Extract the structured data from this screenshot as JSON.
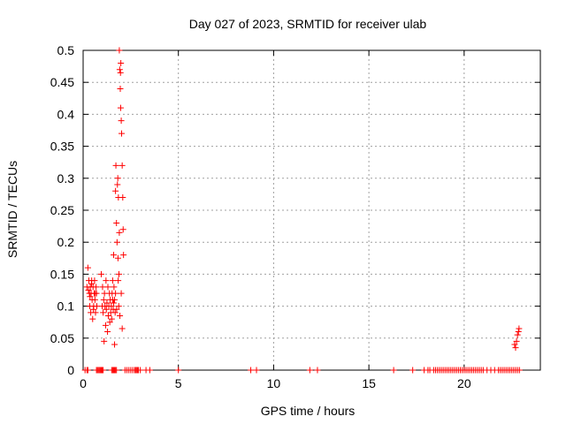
{
  "chart_data": {
    "type": "scatter",
    "title": "Day 027 of 2023, SRMTID for receiver ulab",
    "xlabel": "GPS time / hours",
    "ylabel": "SRMTID / TECUs",
    "xlim": [
      0,
      24
    ],
    "ylim": [
      0,
      0.5
    ],
    "xticks": [
      0,
      5,
      10,
      15,
      20
    ],
    "yticks": [
      0,
      0.05,
      0.1,
      0.15,
      0.2,
      0.25,
      0.3,
      0.35,
      0.4,
      0.45,
      0.5
    ],
    "xtick_labels": [
      "0",
      "5",
      "10",
      "15",
      "20"
    ],
    "ytick_labels": [
      "0",
      "0.05",
      "0.1",
      "0.15",
      "0.2",
      "0.25",
      "0.3",
      "0.35",
      "0.4",
      "0.45",
      "0.5"
    ],
    "grid": true,
    "marker": "plus",
    "color": "#ff0000",
    "series": [
      {
        "points": [
          [
            0.2,
            0.13
          ],
          [
            0.25,
            0.16
          ],
          [
            0.3,
            0.14
          ],
          [
            0.33,
            0.12
          ],
          [
            0.35,
            0.1
          ],
          [
            0.38,
            0.13
          ],
          [
            0.4,
            0.09
          ],
          [
            0.42,
            0.12
          ],
          [
            0.45,
            0.14
          ],
          [
            0.47,
            0.11
          ],
          [
            0.5,
            0.08
          ],
          [
            0.52,
            0.13
          ],
          [
            0.55,
            0.1
          ],
          [
            0.58,
            0.12
          ],
          [
            0.6,
            0.14
          ],
          [
            0.62,
            0.11
          ],
          [
            0.65,
            0.09
          ],
          [
            0.68,
            0.13
          ],
          [
            0.7,
            0.12
          ],
          [
            0.72,
            0.1
          ],
          [
            0.28,
            0.125
          ],
          [
            0.36,
            0.115
          ],
          [
            0.44,
            0.135
          ],
          [
            0.54,
            0.095
          ],
          [
            0.64,
            0.12
          ],
          [
            0.95,
            0.15
          ],
          [
            1.0,
            0.1
          ],
          [
            1.02,
            0.13
          ],
          [
            1.05,
            0.09
          ],
          [
            1.08,
            0.11
          ],
          [
            1.1,
            0.045
          ],
          [
            1.12,
            0.12
          ],
          [
            1.15,
            0.1
          ],
          [
            1.18,
            0.07
          ],
          [
            1.2,
            0.14
          ],
          [
            1.22,
            0.095
          ],
          [
            1.25,
            0.105
          ],
          [
            1.28,
            0.06
          ],
          [
            1.3,
            0.13
          ],
          [
            1.32,
            0.085
          ],
          [
            1.35,
            0.1
          ],
          [
            1.38,
            0.12
          ],
          [
            1.4,
            0.075
          ],
          [
            1.42,
            0.11
          ],
          [
            1.45,
            0.09
          ],
          [
            1.48,
            0.1
          ],
          [
            1.5,
            0.08
          ],
          [
            1.52,
            0.12
          ],
          [
            1.55,
            0.11
          ],
          [
            1.58,
            0.095
          ],
          [
            1.6,
            0.105
          ],
          [
            1.62,
            0.13
          ],
          [
            1.65,
            0.04
          ],
          [
            1.68,
            0.09
          ],
          [
            1.7,
            0.12
          ],
          [
            1.55,
            0.14
          ],
          [
            1.6,
            0.18
          ],
          [
            1.65,
            0.11
          ],
          [
            1.7,
            0.28
          ],
          [
            1.72,
            0.32
          ],
          [
            1.75,
            0.23
          ],
          [
            1.78,
            0.2
          ],
          [
            1.8,
            0.29
          ],
          [
            1.82,
            0.3
          ],
          [
            1.85,
            0.27
          ],
          [
            1.88,
            0.15
          ],
          [
            1.9,
            0.5
          ],
          [
            1.92,
            0.47
          ],
          [
            1.95,
            0.44
          ],
          [
            1.97,
            0.41
          ],
          [
            1.98,
            0.48
          ],
          [
            2.0,
            0.39
          ],
          [
            2.02,
            0.37
          ],
          [
            2.05,
            0.32
          ],
          [
            2.08,
            0.27
          ],
          [
            2.1,
            0.22
          ],
          [
            2.12,
            0.18
          ],
          [
            1.84,
            0.14
          ],
          [
            1.87,
            0.1
          ],
          [
            1.93,
            0.085
          ],
          [
            2.0,
            0.12
          ],
          [
            2.05,
            0.065
          ],
          [
            1.76,
            0.095
          ],
          [
            1.83,
            0.175
          ],
          [
            1.9,
            0.215
          ],
          [
            1.96,
            0.465
          ],
          [
            22.65,
            0.04
          ],
          [
            22.7,
            0.035
          ],
          [
            22.75,
            0.045
          ],
          [
            22.8,
            0.055
          ],
          [
            22.85,
            0.06
          ],
          [
            22.88,
            0.065
          ]
        ]
      },
      {
        "points": [
          [
            0.1,
            0
          ],
          [
            0.2,
            0
          ],
          [
            0.25,
            0
          ],
          [
            0.7,
            0
          ],
          [
            0.75,
            0
          ],
          [
            0.8,
            0
          ],
          [
            0.85,
            0
          ],
          [
            0.9,
            0
          ],
          [
            0.95,
            0
          ],
          [
            1.0,
            0
          ],
          [
            1.05,
            0
          ],
          [
            1.5,
            0
          ],
          [
            1.55,
            0
          ],
          [
            1.6,
            0
          ],
          [
            1.65,
            0
          ],
          [
            1.7,
            0
          ],
          [
            1.75,
            0
          ],
          [
            2.2,
            0
          ],
          [
            2.3,
            0
          ],
          [
            2.4,
            0
          ],
          [
            2.5,
            0
          ],
          [
            2.6,
            0
          ],
          [
            2.7,
            0
          ],
          [
            2.75,
            0
          ],
          [
            2.8,
            0
          ],
          [
            2.85,
            0
          ],
          [
            2.9,
            0
          ],
          [
            3.0,
            0
          ],
          [
            3.3,
            0
          ],
          [
            3.5,
            0
          ],
          [
            5.0,
            0
          ],
          [
            8.8,
            0
          ],
          [
            9.1,
            0
          ],
          [
            11.9,
            0
          ],
          [
            12.3,
            0
          ],
          [
            16.3,
            0
          ],
          [
            17.3,
            0
          ],
          [
            17.9,
            0
          ],
          [
            18.1,
            0
          ],
          [
            18.2,
            0
          ],
          [
            18.4,
            0
          ],
          [
            18.5,
            0
          ],
          [
            18.6,
            0
          ],
          [
            18.7,
            0
          ],
          [
            18.8,
            0
          ],
          [
            18.9,
            0
          ],
          [
            19.0,
            0
          ],
          [
            19.1,
            0
          ],
          [
            19.2,
            0
          ],
          [
            19.3,
            0
          ],
          [
            19.4,
            0
          ],
          [
            19.5,
            0
          ],
          [
            19.6,
            0
          ],
          [
            19.7,
            0
          ],
          [
            19.8,
            0
          ],
          [
            19.9,
            0
          ],
          [
            20.0,
            0
          ],
          [
            20.1,
            0
          ],
          [
            20.2,
            0
          ],
          [
            20.3,
            0
          ],
          [
            20.4,
            0
          ],
          [
            20.5,
            0
          ],
          [
            20.6,
            0
          ],
          [
            20.7,
            0
          ],
          [
            20.8,
            0
          ],
          [
            20.9,
            0
          ],
          [
            21.0,
            0
          ],
          [
            21.2,
            0
          ],
          [
            21.4,
            0
          ],
          [
            21.6,
            0
          ],
          [
            21.8,
            0
          ],
          [
            21.9,
            0
          ],
          [
            22.0,
            0
          ],
          [
            22.1,
            0
          ],
          [
            22.2,
            0
          ],
          [
            22.3,
            0
          ],
          [
            22.4,
            0
          ],
          [
            22.5,
            0
          ],
          [
            22.6,
            0
          ],
          [
            22.7,
            0
          ],
          [
            22.8,
            0
          ],
          [
            22.9,
            0
          ]
        ]
      }
    ]
  }
}
